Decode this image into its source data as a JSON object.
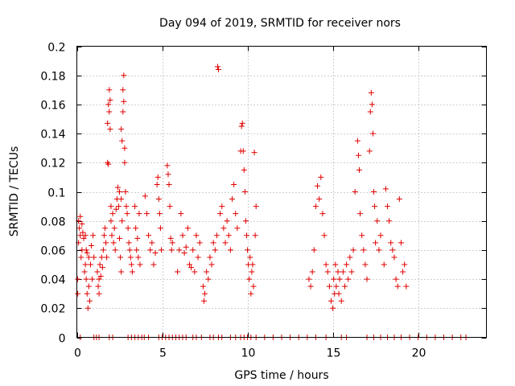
{
  "chart_data": {
    "type": "scatter",
    "title": "Day 094 of 2019, SRMTID for receiver nors",
    "xlabel": "GPS time / hours",
    "ylabel": "SRMTID / TECUs",
    "xlim": [
      0,
      24
    ],
    "ylim": [
      0,
      0.2
    ],
    "xticks": [
      0,
      5,
      10,
      15,
      20
    ],
    "xtick_labels": [
      "0",
      "5",
      "10",
      "15",
      "20"
    ],
    "yticks": [
      0,
      0.02,
      0.04,
      0.06,
      0.08,
      0.1,
      0.12,
      0.14,
      0.16,
      0.18,
      0.2
    ],
    "ytick_labels": [
      "0",
      "0.02",
      "0.04",
      "0.06",
      "0.08",
      "0.1",
      "0.12",
      "0.14",
      "0.16",
      "0.18",
      "0.2"
    ],
    "grid": true,
    "marker": "+",
    "color": "#e00000",
    "series": [
      {
        "name": "SRMTID",
        "points": [
          [
            0.05,
            0.03
          ],
          [
            0.05,
            0.04
          ],
          [
            0.1,
            0.08
          ],
          [
            0.1,
            0.065
          ],
          [
            0.15,
            0.075
          ],
          [
            0.2,
            0.083
          ],
          [
            0.2,
            0.07
          ],
          [
            0.25,
            0.055
          ],
          [
            0.3,
            0.078
          ],
          [
            0.3,
            0.06
          ],
          [
            0.35,
            0.072
          ],
          [
            0.4,
            0.068
          ],
          [
            0.45,
            0.045
          ],
          [
            0.5,
            0.07
          ],
          [
            0.5,
            0.05
          ],
          [
            0.55,
            0.04
          ],
          [
            0.55,
            0.06
          ],
          [
            0.6,
            0.03
          ],
          [
            0.6,
            0.058
          ],
          [
            0.65,
            0.02
          ],
          [
            0.7,
            0.035
          ],
          [
            0.7,
            0.055
          ],
          [
            0.75,
            0.025
          ],
          [
            0.8,
            0.05
          ],
          [
            0.85,
            0.063
          ],
          [
            0.9,
            0.04
          ],
          [
            0.95,
            0.07
          ],
          [
            1.0,
            0.055
          ],
          [
            1.2,
            0.045
          ],
          [
            1.25,
            0.035
          ],
          [
            1.3,
            0.04
          ],
          [
            1.3,
            0.03
          ],
          [
            1.35,
            0.05
          ],
          [
            1.4,
            0.042
          ],
          [
            1.45,
            0.055
          ],
          [
            1.5,
            0.048
          ],
          [
            1.55,
            0.06
          ],
          [
            1.6,
            0.07
          ],
          [
            1.65,
            0.075
          ],
          [
            1.7,
            0.065
          ],
          [
            1.75,
            0.055
          ],
          [
            1.8,
            0.12
          ],
          [
            1.85,
            0.119
          ],
          [
            1.8,
            0.147
          ],
          [
            1.85,
            0.16
          ],
          [
            1.9,
            0.155
          ],
          [
            1.9,
            0.17
          ],
          [
            1.95,
            0.143
          ],
          [
            1.95,
            0.163
          ],
          [
            2.0,
            0.08
          ],
          [
            2.0,
            0.09
          ],
          [
            2.05,
            0.07
          ],
          [
            2.1,
            0.085
          ],
          [
            2.15,
            0.065
          ],
          [
            2.2,
            0.075
          ],
          [
            2.25,
            0.06
          ],
          [
            2.3,
            0.088
          ],
          [
            2.35,
            0.095
          ],
          [
            2.4,
            0.103
          ],
          [
            2.45,
            0.09
          ],
          [
            2.5,
            0.1
          ],
          [
            2.5,
            0.068
          ],
          [
            2.55,
            0.055
          ],
          [
            2.6,
            0.045
          ],
          [
            2.6,
            0.095
          ],
          [
            2.65,
            0.08
          ],
          [
            2.6,
            0.143
          ],
          [
            2.65,
            0.135
          ],
          [
            2.7,
            0.155
          ],
          [
            2.7,
            0.17
          ],
          [
            2.75,
            0.18
          ],
          [
            2.75,
            0.162
          ],
          [
            2.8,
            0.13
          ],
          [
            2.8,
            0.12
          ],
          [
            2.85,
            0.1
          ],
          [
            2.9,
            0.09
          ],
          [
            2.95,
            0.085
          ],
          [
            3.0,
            0.075
          ],
          [
            3.05,
            0.065
          ],
          [
            3.1,
            0.06
          ],
          [
            3.15,
            0.055
          ],
          [
            3.2,
            0.05
          ],
          [
            3.25,
            0.045
          ],
          [
            3.4,
            0.09
          ],
          [
            3.45,
            0.075
          ],
          [
            3.5,
            0.06
          ],
          [
            3.55,
            0.068
          ],
          [
            3.6,
            0.055
          ],
          [
            3.65,
            0.085
          ],
          [
            3.7,
            0.05
          ],
          [
            4.0,
            0.097
          ],
          [
            4.1,
            0.085
          ],
          [
            4.2,
            0.07
          ],
          [
            4.3,
            0.06
          ],
          [
            4.4,
            0.065
          ],
          [
            4.5,
            0.05
          ],
          [
            4.6,
            0.058
          ],
          [
            4.7,
            0.105
          ],
          [
            4.75,
            0.11
          ],
          [
            4.8,
            0.095
          ],
          [
            4.85,
            0.085
          ],
          [
            4.9,
            0.075
          ],
          [
            4.95,
            0.06
          ],
          [
            5.3,
            0.118
          ],
          [
            5.35,
            0.112
          ],
          [
            5.4,
            0.105
          ],
          [
            5.45,
            0.09
          ],
          [
            5.5,
            0.068
          ],
          [
            5.55,
            0.06
          ],
          [
            5.6,
            0.065
          ],
          [
            5.9,
            0.045
          ],
          [
            6.0,
            0.06
          ],
          [
            6.1,
            0.085
          ],
          [
            6.2,
            0.07
          ],
          [
            6.3,
            0.058
          ],
          [
            6.4,
            0.062
          ],
          [
            6.5,
            0.075
          ],
          [
            6.6,
            0.05
          ],
          [
            6.7,
            0.048
          ],
          [
            6.8,
            0.06
          ],
          [
            6.9,
            0.045
          ],
          [
            7.0,
            0.07
          ],
          [
            7.1,
            0.055
          ],
          [
            7.2,
            0.065
          ],
          [
            7.4,
            0.035
          ],
          [
            7.45,
            0.025
          ],
          [
            7.5,
            0.03
          ],
          [
            7.6,
            0.045
          ],
          [
            7.7,
            0.04
          ],
          [
            7.8,
            0.055
          ],
          [
            7.9,
            0.05
          ],
          [
            8.0,
            0.065
          ],
          [
            8.1,
            0.06
          ],
          [
            8.2,
            0.07
          ],
          [
            8.25,
            0.186
          ],
          [
            8.3,
            0.184
          ],
          [
            8.4,
            0.085
          ],
          [
            8.5,
            0.09
          ],
          [
            8.6,
            0.075
          ],
          [
            8.7,
            0.065
          ],
          [
            8.8,
            0.08
          ],
          [
            8.9,
            0.07
          ],
          [
            9.0,
            0.06
          ],
          [
            9.1,
            0.095
          ],
          [
            9.2,
            0.105
          ],
          [
            9.3,
            0.085
          ],
          [
            9.4,
            0.075
          ],
          [
            9.6,
            0.128
          ],
          [
            9.65,
            0.145
          ],
          [
            9.7,
            0.147
          ],
          [
            9.75,
            0.128
          ],
          [
            9.8,
            0.115
          ],
          [
            9.85,
            0.1
          ],
          [
            9.9,
            0.08
          ],
          [
            9.95,
            0.07
          ],
          [
            10.0,
            0.06
          ],
          [
            10.05,
            0.05
          ],
          [
            10.1,
            0.04
          ],
          [
            10.15,
            0.055
          ],
          [
            10.2,
            0.03
          ],
          [
            10.25,
            0.045
          ],
          [
            10.3,
            0.05
          ],
          [
            10.35,
            0.035
          ],
          [
            10.4,
            0.127
          ],
          [
            10.45,
            0.07
          ],
          [
            10.5,
            0.09
          ],
          [
            13.6,
            0.04
          ],
          [
            13.7,
            0.035
          ],
          [
            13.8,
            0.045
          ],
          [
            13.9,
            0.06
          ],
          [
            14.0,
            0.09
          ],
          [
            14.1,
            0.104
          ],
          [
            14.2,
            0.095
          ],
          [
            14.3,
            0.11
          ],
          [
            14.4,
            0.085
          ],
          [
            14.5,
            0.07
          ],
          [
            14.6,
            0.05
          ],
          [
            14.7,
            0.045
          ],
          [
            14.8,
            0.035
          ],
          [
            14.9,
            0.025
          ],
          [
            15.0,
            0.02
          ],
          [
            15.05,
            0.04
          ],
          [
            15.1,
            0.03
          ],
          [
            15.15,
            0.05
          ],
          [
            15.2,
            0.035
          ],
          [
            15.3,
            0.045
          ],
          [
            15.35,
            0.03
          ],
          [
            15.4,
            0.04
          ],
          [
            15.5,
            0.025
          ],
          [
            15.6,
            0.045
          ],
          [
            15.7,
            0.035
          ],
          [
            15.8,
            0.05
          ],
          [
            15.9,
            0.04
          ],
          [
            16.0,
            0.055
          ],
          [
            16.1,
            0.045
          ],
          [
            16.2,
            0.06
          ],
          [
            16.3,
            0.1
          ],
          [
            16.45,
            0.135
          ],
          [
            16.5,
            0.125
          ],
          [
            16.55,
            0.115
          ],
          [
            16.6,
            0.085
          ],
          [
            16.7,
            0.07
          ],
          [
            16.8,
            0.06
          ],
          [
            16.9,
            0.05
          ],
          [
            17.0,
            0.04
          ],
          [
            17.15,
            0.128
          ],
          [
            17.2,
            0.155
          ],
          [
            17.25,
            0.168
          ],
          [
            17.3,
            0.16
          ],
          [
            17.35,
            0.14
          ],
          [
            17.4,
            0.1
          ],
          [
            17.45,
            0.09
          ],
          [
            17.5,
            0.065
          ],
          [
            17.6,
            0.08
          ],
          [
            17.7,
            0.06
          ],
          [
            17.8,
            0.07
          ],
          [
            18.0,
            0.05
          ],
          [
            18.1,
            0.102
          ],
          [
            18.2,
            0.09
          ],
          [
            18.3,
            0.08
          ],
          [
            18.4,
            0.065
          ],
          [
            18.5,
            0.06
          ],
          [
            18.6,
            0.055
          ],
          [
            18.7,
            0.04
          ],
          [
            18.8,
            0.035
          ],
          [
            18.9,
            0.095
          ],
          [
            19.0,
            0.065
          ],
          [
            19.1,
            0.045
          ],
          [
            19.2,
            0.05
          ],
          [
            19.3,
            0.035
          ],
          [
            0.2,
            0
          ],
          [
            1.0,
            0
          ],
          [
            1.15,
            0
          ],
          [
            1.3,
            0
          ],
          [
            1.9,
            0
          ],
          [
            2.1,
            0
          ],
          [
            3.0,
            0
          ],
          [
            3.2,
            0
          ],
          [
            3.4,
            0
          ],
          [
            3.6,
            0
          ],
          [
            3.8,
            0
          ],
          [
            3.95,
            0
          ],
          [
            4.2,
            0
          ],
          [
            4.8,
            0
          ],
          [
            5.0,
            0
          ],
          [
            5.2,
            0
          ],
          [
            5.4,
            0
          ],
          [
            5.6,
            0
          ],
          [
            5.8,
            0
          ],
          [
            6.0,
            0
          ],
          [
            6.2,
            0
          ],
          [
            6.4,
            0
          ],
          [
            6.8,
            0
          ],
          [
            7.0,
            0
          ],
          [
            7.3,
            0
          ],
          [
            7.8,
            0
          ],
          [
            8.0,
            0
          ],
          [
            8.3,
            0
          ],
          [
            8.5,
            0
          ],
          [
            9.0,
            0
          ],
          [
            9.3,
            0
          ],
          [
            9.6,
            0
          ],
          [
            9.8,
            0
          ],
          [
            10.0,
            0
          ],
          [
            10.2,
            0
          ],
          [
            10.5,
            0
          ],
          [
            11.0,
            0
          ],
          [
            11.5,
            0
          ],
          [
            12.0,
            0
          ],
          [
            12.5,
            0
          ],
          [
            13.0,
            0
          ],
          [
            13.5,
            0
          ],
          [
            14.0,
            0
          ],
          [
            14.6,
            0
          ],
          [
            15.5,
            0
          ],
          [
            15.8,
            0
          ],
          [
            17.0,
            0
          ],
          [
            17.4,
            0
          ],
          [
            17.8,
            0
          ],
          [
            18.2,
            0
          ],
          [
            18.6,
            0
          ],
          [
            19.0,
            0
          ],
          [
            19.5,
            0
          ],
          [
            20.0,
            0
          ],
          [
            20.5,
            0
          ],
          [
            21.0,
            0
          ],
          [
            21.5,
            0
          ],
          [
            22.0,
            0
          ],
          [
            22.5,
            0
          ],
          [
            22.8,
            0
          ]
        ]
      }
    ]
  }
}
